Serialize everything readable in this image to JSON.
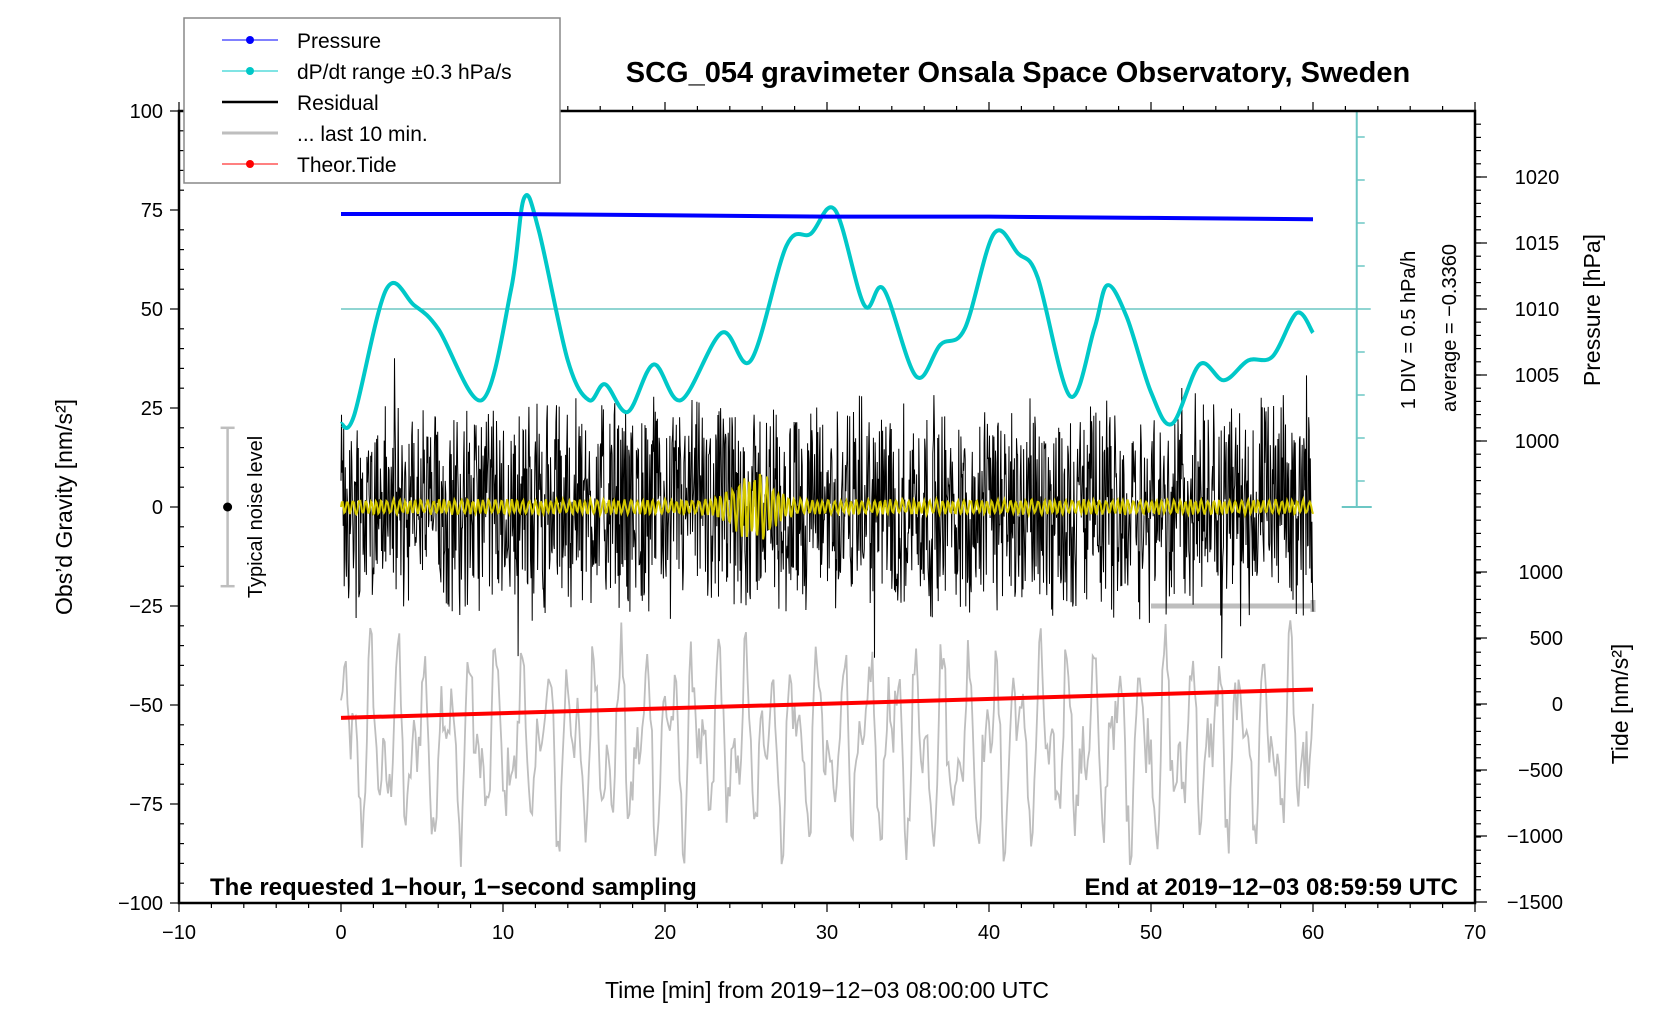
{
  "chart_data": {
    "type": "line",
    "title": "SCG_054 gravimeter Onsala Space Observatory, Sweden",
    "xlabel": "Time [min] from 2019−12−03 08:00:00 UTC",
    "ylabel_left": "Obs’d Gravity [nm/s²]",
    "ylabel_right_pressure": "Pressure [hPa]",
    "ylabel_right_tide": "Tide [nm/s²]",
    "xlim": [
      -10,
      70
    ],
    "ylim_left": [
      -100,
      100
    ],
    "x_ticks": [
      "−10",
      "0",
      "10",
      "20",
      "30",
      "40",
      "50",
      "60",
      "70"
    ],
    "x_tick_values": [
      -10,
      0,
      10,
      20,
      30,
      40,
      50,
      60,
      70
    ],
    "y_left_ticks": [
      "100",
      "75",
      "50",
      "25",
      "0",
      "−25",
      "−50",
      "−75",
      "−100"
    ],
    "y_left_tick_values": [
      100,
      75,
      50,
      25,
      0,
      -25,
      -50,
      -75,
      -100
    ],
    "pressure_ticks": [
      "1020",
      "1015",
      "1010",
      "1005",
      "1000"
    ],
    "pressure_tick_values": [
      1020,
      1015,
      1010,
      1005,
      1000
    ],
    "tide_ticks": [
      "1000",
      "500",
      "0",
      "−500",
      "−1000",
      "−1500"
    ],
    "tide_tick_values": [
      1000,
      500,
      0,
      -500,
      -1000,
      -1500
    ],
    "grid": false,
    "legend_position": "top-left",
    "legend": [
      {
        "label": "Pressure",
        "color": "#0000ff",
        "marker": "dot"
      },
      {
        "label": "dP/dt range ±0.3 hPa/s",
        "color": "#00c8c8",
        "marker": "dot"
      },
      {
        "label": "Residual",
        "color": "#000000",
        "marker": "line"
      },
      {
        "label": "... last 10 min.",
        "color": "#bebebe",
        "marker": "line"
      },
      {
        "label": "Theor.Tide",
        "color": "#ff0000",
        "marker": "dot"
      }
    ],
    "series": [
      {
        "name": "Pressure",
        "axis": "pressure_hPa",
        "color": "#0000ff",
        "x": [
          0,
          10,
          20,
          30,
          40,
          50,
          60
        ],
        "values": [
          1017.2,
          1017.2,
          1017.1,
          1017.0,
          1017.0,
          1016.9,
          1016.8
        ]
      },
      {
        "name": "dP/dt",
        "axis": "gravity_units_scaled",
        "color": "#00c8c8",
        "x": [
          0,
          0.8,
          2.8,
          4.5,
          6,
          8.7,
          10.5,
          11.3,
          12.2,
          14,
          15.3,
          16.3,
          17.7,
          19.3,
          21,
          23.5,
          25.3,
          27.5,
          29,
          30.5,
          32.3,
          33.5,
          35.5,
          37,
          38.5,
          40.3,
          41.8,
          43,
          45,
          46.5,
          47.3,
          48.5,
          50,
          51.3,
          53,
          54.5,
          56,
          57.5,
          59,
          60
        ],
        "values": [
          21,
          23,
          55,
          51,
          45,
          27,
          55,
          78,
          70,
          37,
          27,
          31,
          24,
          36,
          27,
          44,
          37,
          66,
          69,
          75,
          51,
          55,
          33,
          41,
          45,
          69,
          64,
          58,
          28,
          45,
          56,
          48,
          29,
          21,
          36,
          32,
          37,
          38,
          49,
          44
        ]
      },
      {
        "name": "Residual",
        "axis": "gravity_nm_s2",
        "color": "#000000",
        "note": "1-second noisy signal, amplitude roughly ±30 nm/s², peaks to ~42",
        "x_range": [
          0,
          60
        ],
        "amplitude": 30
      },
      {
        "name": "Filtered residual",
        "axis": "gravity_nm_s2",
        "color": "#d4c800",
        "note": "yellow smoothed trace, burst around 25.5 min up to ±8",
        "x_range": [
          0,
          60
        ],
        "amplitude": 2,
        "burst_center": 25.5,
        "burst_amplitude": 8
      },
      {
        "name": "... last 10 min.",
        "axis": "gravity_nm_s2",
        "color": "#bebebe",
        "note": "last 10 minutes replotted across 0–60 at offset −60, range approx −95 to −30",
        "x_range": [
          0,
          60
        ],
        "offset": -60,
        "amplitude": 30,
        "marker_range": [
          50,
          60
        ],
        "marker_level": -25
      },
      {
        "name": "Theor.Tide",
        "axis": "tide_nm_s2",
        "color": "#ff0000",
        "x": [
          0,
          60
        ],
        "values": [
          -105,
          110
        ]
      }
    ],
    "noise_bar": {
      "label": "Typical noise level",
      "x": -7,
      "center": 0,
      "half_range": 20
    },
    "dpdt_scale": {
      "label": "1 DIV = 0.5 hPa/h",
      "average_label": "average = −0.3360",
      "x": 62.7,
      "ref_level": 50
    }
  },
  "annotations": {
    "bottom_left": "The requested 1−hour, 1−second sampling",
    "bottom_right": "End at 2019−12−03 08:59:59 UTC"
  }
}
